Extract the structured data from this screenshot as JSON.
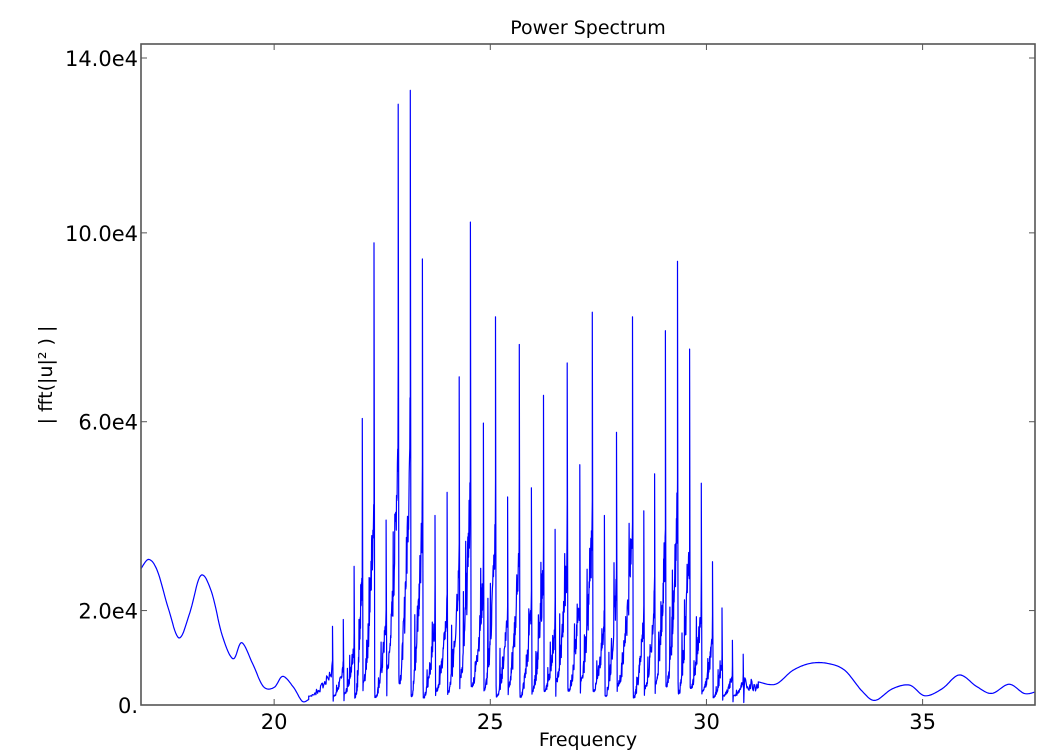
{
  "chart_data": {
    "type": "line",
    "title": "Power Spectrum",
    "xlabel": "Frequency",
    "ylabel": "| fft(|u|² ) |",
    "xlim": [
      16.92,
      37.6
    ],
    "ylim": [
      0,
      140000
    ],
    "grid": false,
    "legend": null,
    "x_ticks": [
      20,
      25,
      30,
      35
    ],
    "x_tick_labels": [
      "20",
      "25",
      "30",
      "35"
    ],
    "y_ticks": [
      0,
      20000,
      60000,
      100000,
      140000
    ],
    "y_tick_labels": [
      "0.",
      "2.0e4",
      "6.0e4",
      "10.0e4",
      "14.0e4"
    ],
    "line_color": "#0000ff",
    "series": [
      {
        "name": "power spectrum",
        "smooth_left": {
          "x": [
            16.92,
            17.1,
            17.3,
            17.55,
            17.8,
            18.05,
            18.3,
            18.55,
            18.8,
            19.05,
            19.25,
            19.5,
            19.75,
            20.0,
            20.2,
            20.45,
            20.65,
            20.8
          ],
          "y": [
            29500,
            31500,
            29000,
            21000,
            14500,
            20000,
            28000,
            24500,
            15000,
            10000,
            13500,
            9000,
            4000,
            3800,
            6200,
            3800,
            800,
            1200
          ]
        },
        "noisy_band": {
          "x_start": 20.8,
          "x_end": 31.2,
          "peaks": [
            {
              "x": 21.35,
              "y": 17000
            },
            {
              "x": 21.6,
              "y": 18500
            },
            {
              "x": 21.85,
              "y": 30000
            },
            {
              "x": 22.04,
              "y": 62000
            },
            {
              "x": 22.31,
              "y": 100000
            },
            {
              "x": 22.59,
              "y": 40000
            },
            {
              "x": 22.87,
              "y": 130000
            },
            {
              "x": 23.15,
              "y": 133000
            },
            {
              "x": 23.43,
              "y": 96500
            },
            {
              "x": 23.72,
              "y": 41000
            },
            {
              "x": 24.0,
              "y": 46000
            },
            {
              "x": 24.28,
              "y": 71000
            },
            {
              "x": 24.54,
              "y": 104500
            },
            {
              "x": 24.84,
              "y": 61000
            },
            {
              "x": 25.12,
              "y": 84000
            },
            {
              "x": 25.4,
              "y": 45000
            },
            {
              "x": 25.67,
              "y": 78000
            },
            {
              "x": 25.95,
              "y": 47000
            },
            {
              "x": 26.23,
              "y": 67000
            },
            {
              "x": 26.5,
              "y": 38000
            },
            {
              "x": 26.78,
              "y": 74000
            },
            {
              "x": 27.07,
              "y": 52000
            },
            {
              "x": 27.36,
              "y": 85000
            },
            {
              "x": 27.64,
              "y": 41000
            },
            {
              "x": 27.92,
              "y": 59000
            },
            {
              "x": 28.29,
              "y": 84000
            },
            {
              "x": 28.55,
              "y": 42000
            },
            {
              "x": 28.8,
              "y": 50000
            },
            {
              "x": 29.05,
              "y": 81000
            },
            {
              "x": 29.33,
              "y": 96000
            },
            {
              "x": 29.61,
              "y": 77000
            },
            {
              "x": 29.88,
              "y": 48000
            },
            {
              "x": 30.14,
              "y": 31000
            },
            {
              "x": 30.36,
              "y": 21000
            },
            {
              "x": 30.6,
              "y": 14000
            },
            {
              "x": 30.85,
              "y": 11000
            }
          ]
        },
        "smooth_right": {
          "x": [
            31.2,
            31.6,
            32.0,
            32.4,
            32.8,
            33.2,
            33.6,
            33.9,
            34.3,
            34.7,
            35.05,
            35.45,
            35.85,
            36.25,
            36.6,
            37.0,
            37.35,
            37.6
          ],
          "y": [
            5000,
            4500,
            7500,
            9000,
            9000,
            7500,
            3000,
            1000,
            3500,
            4300,
            2000,
            3500,
            6500,
            4000,
            2500,
            4500,
            2500,
            2800
          ]
        }
      }
    ]
  }
}
